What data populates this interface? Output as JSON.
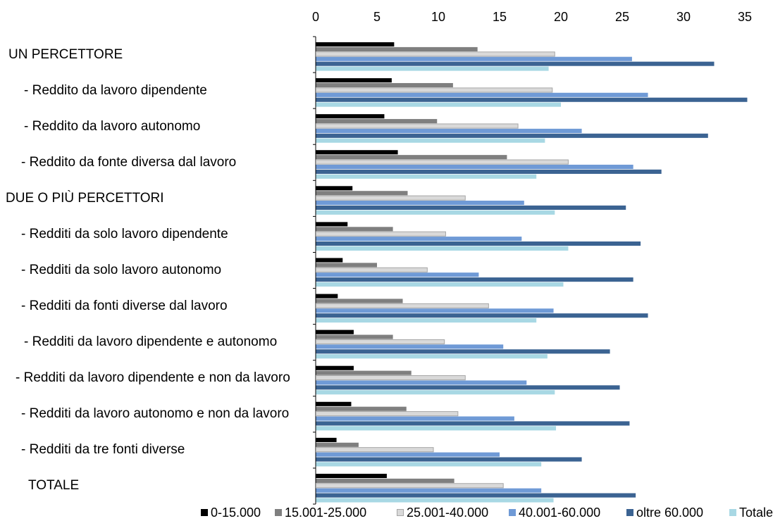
{
  "chart_data": {
    "type": "bar",
    "orientation": "horizontal",
    "xlim": [
      0,
      35
    ],
    "x_ticks": [
      "0",
      "5",
      "10",
      "15",
      "20",
      "25",
      "30",
      "35"
    ],
    "categories": [
      "UN PERCETTORE",
      "- Reddito da lavoro dipendente",
      "- Reddito da lavoro autonomo",
      "- Reddito da fonte diversa dal lavoro",
      "DUE O PIÙ PERCETTORI",
      "- Redditi da solo lavoro dipendente",
      "- Redditi da solo lavoro autonomo",
      "- Redditi da fonti diverse dal lavoro",
      "- Redditi da lavoro dipendente e autonomo",
      "- Redditi da lavoro dipendente e non da lavoro",
      "- Redditi da lavoro autonomo e non da lavoro",
      "- Redditi da tre fonti diverse",
      "TOTALE"
    ],
    "series": [
      {
        "name": "0-15.000",
        "color": "#000000",
        "values": [
          6.4,
          6.2,
          5.6,
          6.7,
          3.0,
          2.6,
          2.2,
          1.8,
          3.1,
          3.1,
          2.9,
          1.7,
          5.8
        ]
      },
      {
        "name": "15.001-25.000",
        "color": "#7f7f7f",
        "values": [
          13.2,
          11.2,
          9.9,
          15.6,
          7.5,
          6.3,
          5.0,
          7.1,
          6.3,
          7.8,
          7.4,
          3.5,
          11.3
        ]
      },
      {
        "name": "25.001-40.000",
        "color": "#d9d9d9",
        "values": [
          19.5,
          19.3,
          16.5,
          20.6,
          12.2,
          10.6,
          9.1,
          14.1,
          10.5,
          12.2,
          11.6,
          9.6,
          15.3
        ]
      },
      {
        "name": "40.001-60.000",
        "color": "#6f9ad6",
        "values": [
          25.8,
          27.1,
          21.7,
          25.9,
          17.0,
          16.8,
          13.3,
          19.4,
          15.3,
          17.2,
          16.2,
          15.0,
          18.4
        ]
      },
      {
        "name": "oltre 60.000",
        "color": "#3b6392",
        "values": [
          32.5,
          35.2,
          32.0,
          28.2,
          25.3,
          26.5,
          25.9,
          27.1,
          24.0,
          24.8,
          25.6,
          21.7,
          26.1
        ]
      },
      {
        "name": "Totale",
        "color": "#a8d8e4",
        "values": [
          19.0,
          20.0,
          18.7,
          18.0,
          19.5,
          20.6,
          20.2,
          18.0,
          18.9,
          19.5,
          19.6,
          18.4,
          19.4
        ]
      }
    ],
    "legend_position": "bottom",
    "grid": false
  }
}
